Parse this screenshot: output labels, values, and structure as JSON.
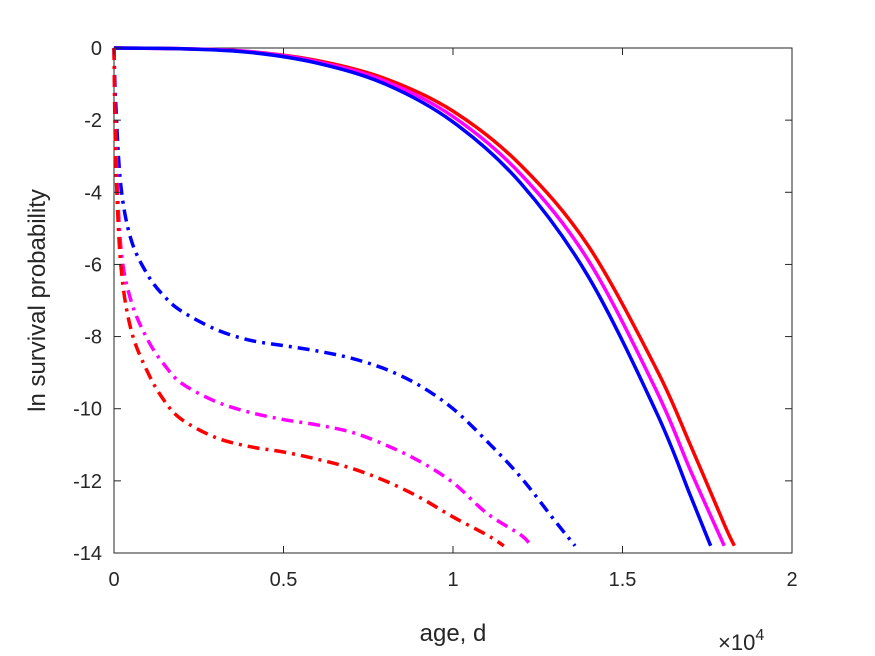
{
  "chart_data": {
    "type": "line",
    "xlabel": "age, d",
    "ylabel": "ln survival probability",
    "x_exponent_label": {
      "base": "×10",
      "exp": "4"
    },
    "x_scale": 10000,
    "xlim": [
      0,
      2
    ],
    "ylim": [
      -14,
      0
    ],
    "xticks": [
      "0",
      "0.5",
      "1",
      "1.5",
      "2"
    ],
    "yticks": [
      "0",
      "-2",
      "-4",
      "-6",
      "-8",
      "-10",
      "-12",
      "-14"
    ],
    "xtick_values": [
      0,
      0.5,
      1,
      1.5,
      2
    ],
    "ytick_values": [
      0,
      -2,
      -4,
      -6,
      -8,
      -10,
      -12,
      -14
    ],
    "grid": false,
    "series": [
      {
        "color": "#ff0000",
        "style": "solid",
        "x": [
          0,
          0.2,
          0.4,
          0.6,
          0.8,
          1.0,
          1.2,
          1.4,
          1.6,
          1.7,
          1.8,
          1.83
        ],
        "y": [
          0,
          -0.02,
          -0.1,
          -0.35,
          -0.85,
          -1.75,
          -3.25,
          -5.5,
          -8.9,
          -11.0,
          -13.2,
          -13.8
        ]
      },
      {
        "color": "#ff00ff",
        "style": "solid",
        "x": [
          0,
          0.2,
          0.4,
          0.6,
          0.8,
          1.0,
          1.2,
          1.4,
          1.6,
          1.7,
          1.8
        ],
        "y": [
          0,
          -0.02,
          -0.1,
          -0.38,
          -0.92,
          -1.9,
          -3.5,
          -5.9,
          -9.5,
          -11.7,
          -13.8
        ]
      },
      {
        "color": "#0000ff",
        "style": "solid",
        "x": [
          0,
          0.2,
          0.4,
          0.6,
          0.8,
          1.0,
          1.2,
          1.4,
          1.6,
          1.7,
          1.76
        ],
        "y": [
          0,
          -0.02,
          -0.12,
          -0.42,
          -1.0,
          -2.05,
          -3.75,
          -6.35,
          -10.1,
          -12.4,
          -13.8
        ]
      },
      {
        "color": "#0000ff",
        "style": "dashdot",
        "x": [
          0,
          0.005,
          0.02,
          0.05,
          0.1,
          0.15,
          0.2,
          0.3,
          0.4,
          0.5,
          0.6,
          0.7,
          0.8,
          0.9,
          1.0,
          1.1,
          1.2,
          1.3,
          1.36
        ],
        "y": [
          0,
          -1.5,
          -3.8,
          -5.3,
          -6.3,
          -6.9,
          -7.3,
          -7.8,
          -8.1,
          -8.25,
          -8.4,
          -8.6,
          -8.9,
          -9.35,
          -10.0,
          -10.9,
          -11.9,
          -13.1,
          -13.8
        ]
      },
      {
        "color": "#ff00ff",
        "style": "dashdot",
        "x": [
          0,
          0.005,
          0.02,
          0.05,
          0.1,
          0.15,
          0.2,
          0.3,
          0.4,
          0.5,
          0.6,
          0.7,
          0.8,
          0.9,
          1.0,
          1.1,
          1.2,
          1.23
        ],
        "y": [
          0,
          -2.5,
          -5.5,
          -7.0,
          -8.1,
          -8.8,
          -9.3,
          -9.8,
          -10.1,
          -10.3,
          -10.45,
          -10.65,
          -11.0,
          -11.45,
          -12.05,
          -12.9,
          -13.5,
          -13.8
        ]
      },
      {
        "color": "#ff0000",
        "style": "dashdot",
        "x": [
          0,
          0.005,
          0.02,
          0.05,
          0.1,
          0.15,
          0.2,
          0.3,
          0.4,
          0.5,
          0.6,
          0.7,
          0.8,
          0.9,
          1.0,
          1.1,
          1.15
        ],
        "y": [
          0,
          -3.0,
          -6.0,
          -7.8,
          -9.0,
          -9.8,
          -10.3,
          -10.8,
          -11.05,
          -11.2,
          -11.4,
          -11.65,
          -12.0,
          -12.45,
          -13.0,
          -13.5,
          -13.8
        ]
      }
    ]
  }
}
